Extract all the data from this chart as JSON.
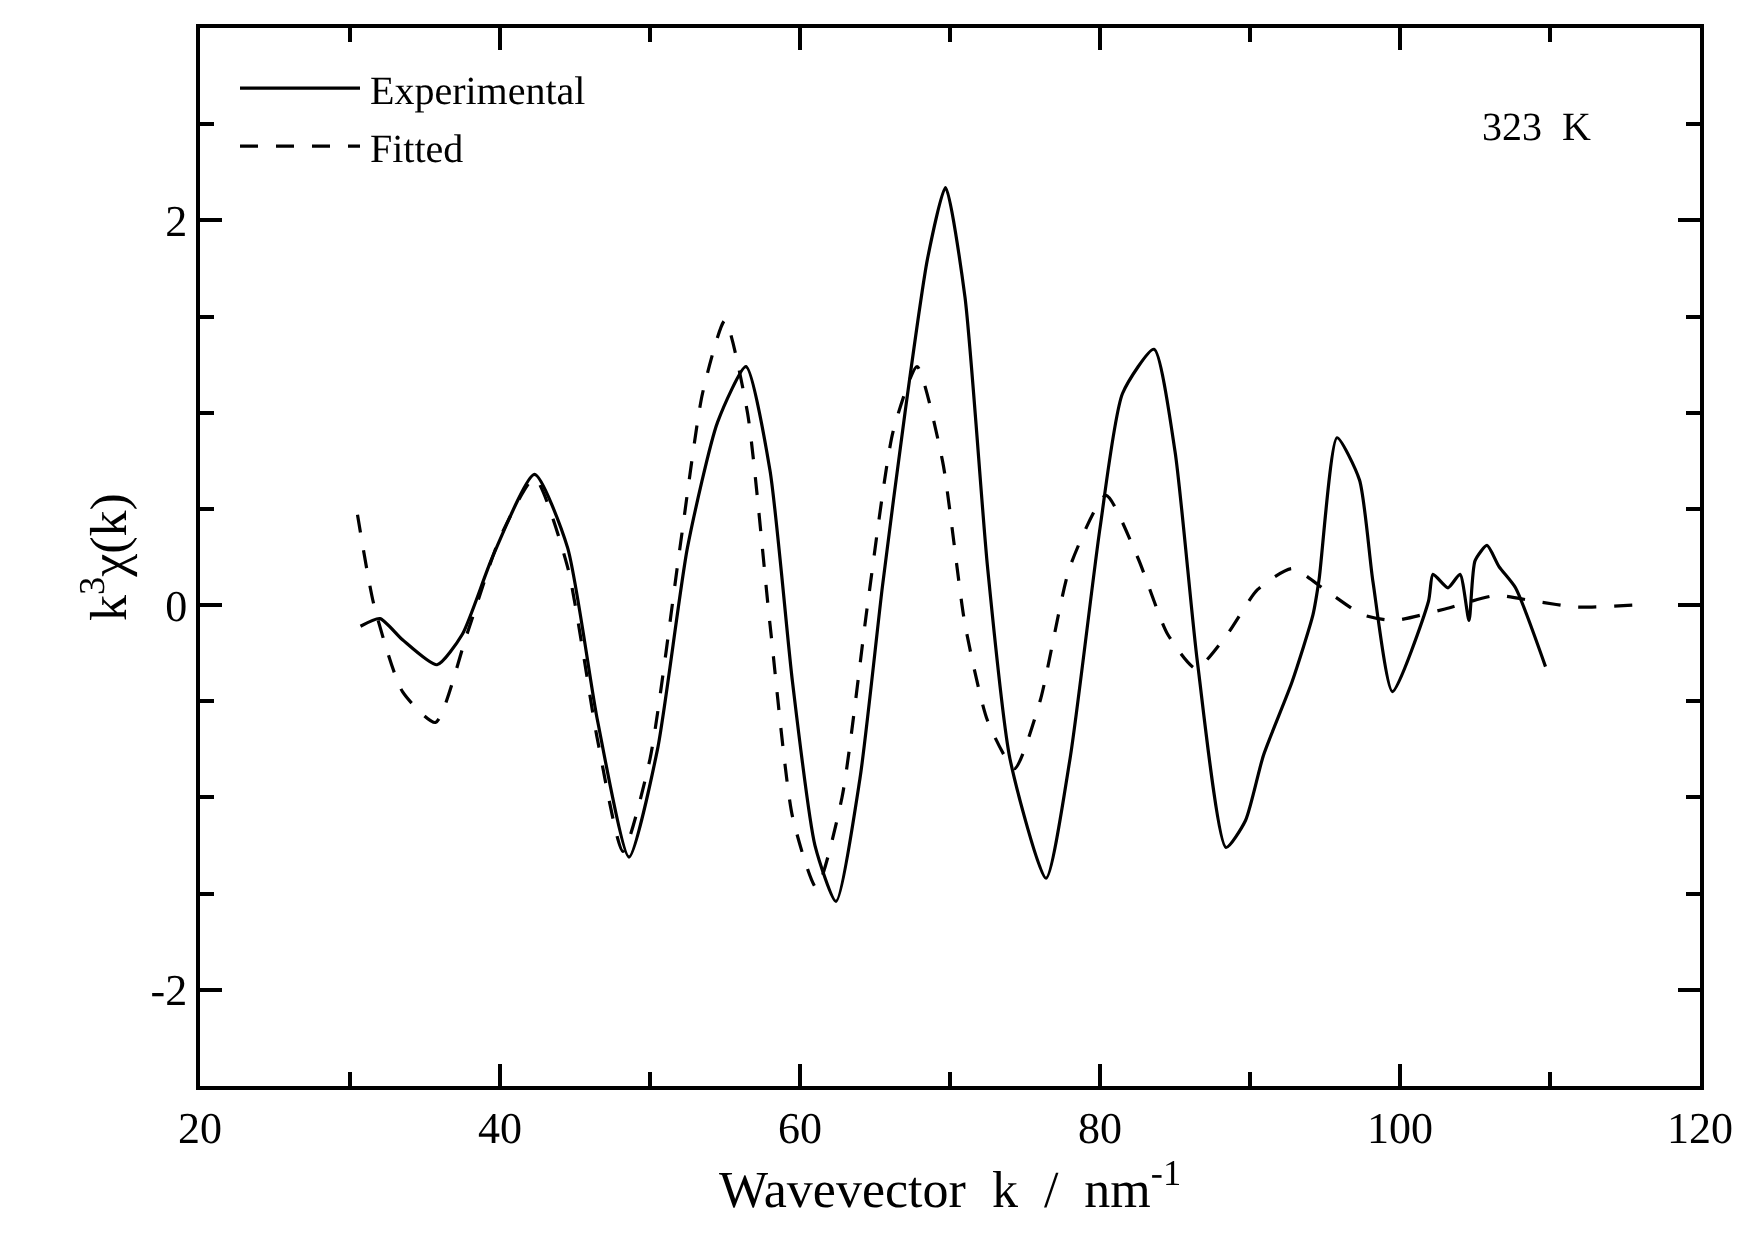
{
  "chart_data": {
    "type": "line",
    "xlabel": "Wavevector  k  /  nm$^{-1}$",
    "ylabel": "k$^{3}$χ(k)",
    "annotations": [
      "323  K"
    ],
    "xlim": [
      20,
      120
    ],
    "ylim": [
      -2.5,
      3
    ],
    "xticks": [
      20,
      {
        "value": 30,
        "label": null
      },
      40,
      {
        "value": 50,
        "label": null
      },
      60,
      {
        "value": 70,
        "label": null
      },
      80,
      {
        "value": 90,
        "label": null
      },
      100,
      {
        "value": 110,
        "label": null
      },
      120
    ],
    "yticks": [
      {
        "value": -2.5,
        "label": null
      },
      -2,
      {
        "value": -1.5,
        "label": null
      },
      {
        "value": -1,
        "label": null
      },
      {
        "value": -0.5,
        "label": null
      },
      0,
      {
        "value": 0.5,
        "label": null
      },
      {
        "value": 1,
        "label": null
      },
      {
        "value": 1.5,
        "label": null
      },
      2,
      {
        "value": 2.5,
        "label": null
      },
      {
        "value": 3,
        "label": null
      }
    ],
    "legend": "top left",
    "marker": "none",
    "series": [
      {
        "name": "Experimental",
        "color": "#000000",
        "line_style": "solid",
        "x": [
          30.7,
          32.0,
          33.5,
          35.8,
          37.5,
          39.5,
          42.3,
          44.5,
          46.5,
          48.6,
          50.5,
          52.5,
          54.5,
          56.4,
          58.0,
          59.5,
          61.0,
          62.4,
          64.0,
          65.5,
          67.0,
          68.5,
          69.7,
          71.0,
          72.5,
          74.0,
          76.4,
          78.0,
          80.0,
          81.5,
          83.6,
          85.0,
          86.5,
          88.4,
          89.7,
          90.9,
          92.8,
          94.2,
          94.6,
          95.8,
          97.3,
          98.2,
          99.5,
          101.9,
          102.2,
          103.2,
          104.0,
          104.6,
          105.0,
          105.8,
          106.6,
          107.7,
          109.7
        ],
        "values": [
          -0.11,
          -0.07,
          -0.18,
          -0.31,
          -0.15,
          0.25,
          0.68,
          0.3,
          -0.6,
          -1.31,
          -0.75,
          0.3,
          0.95,
          1.24,
          0.7,
          -0.4,
          -1.25,
          -1.54,
          -0.9,
          0.1,
          1.0,
          1.8,
          2.17,
          1.6,
          0.2,
          -0.8,
          -1.42,
          -0.8,
          0.4,
          1.1,
          1.33,
          0.8,
          -0.3,
          -1.26,
          -1.12,
          -0.78,
          -0.4,
          -0.05,
          0.13,
          0.87,
          0.65,
          0.12,
          -0.45,
          0.02,
          0.16,
          0.09,
          0.16,
          -0.08,
          0.23,
          0.31,
          0.2,
          0.09,
          -0.32
        ]
      },
      {
        "name": "Fitted",
        "color": "#000000",
        "line_style": "dashed",
        "x": [
          30.5,
          31.6,
          33.5,
          35.7,
          37.8,
          40.0,
          42.3,
          44.5,
          46.5,
          48.2,
          50.0,
          52.0,
          53.5,
          55.0,
          56.5,
          58.0,
          59.5,
          61.1,
          62.8,
          64.5,
          66.2,
          67.8,
          69.5,
          71.0,
          72.5,
          74.3,
          76.0,
          78.0,
          80.4,
          82.5,
          84.5,
          86.4,
          88.5,
          90.5,
          92.8,
          95.0,
          97.5,
          99.6,
          103.0,
          106.4,
          109.0,
          111.8,
          115.5
        ],
        "values": [
          0.47,
          0.0,
          -0.45,
          -0.61,
          -0.15,
          0.35,
          0.66,
          0.2,
          -0.7,
          -1.28,
          -0.8,
          0.3,
          1.1,
          1.48,
          1.0,
          -0.1,
          -1.1,
          -1.47,
          -1.0,
          0.0,
          0.9,
          1.24,
          0.75,
          -0.1,
          -0.6,
          -0.85,
          -0.5,
          0.2,
          0.57,
          0.25,
          -0.15,
          -0.33,
          -0.15,
          0.08,
          0.19,
          0.08,
          -0.05,
          -0.08,
          -0.02,
          0.05,
          0.02,
          -0.01,
          0.0
        ]
      }
    ]
  }
}
